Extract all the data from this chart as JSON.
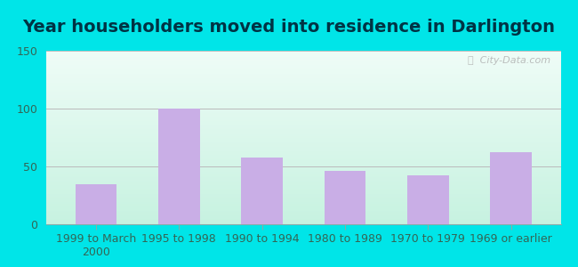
{
  "title": "Year householders moved into residence in Darlington",
  "categories": [
    "1999 to March\n2000",
    "1995 to 1998",
    "1990 to 1994",
    "1980 to 1989",
    "1970 to 1979",
    "1969 or earlier"
  ],
  "values": [
    35,
    100,
    58,
    46,
    42,
    62
  ],
  "bar_color": "#c9aee6",
  "ylim": [
    0,
    150
  ],
  "yticks": [
    0,
    50,
    100,
    150
  ],
  "background_outer": "#00e5e8",
  "bg_topleft": "#b8ede0",
  "bg_topright": "#e8f8f8",
  "bg_bottomleft": "#a0e8d0",
  "bg_bottomright": "#d8f4f8",
  "grid_color": "#bbbbbb",
  "title_color": "#003344",
  "title_fontsize": 14,
  "tick_fontsize": 9,
  "watermark": "City-Data.com"
}
